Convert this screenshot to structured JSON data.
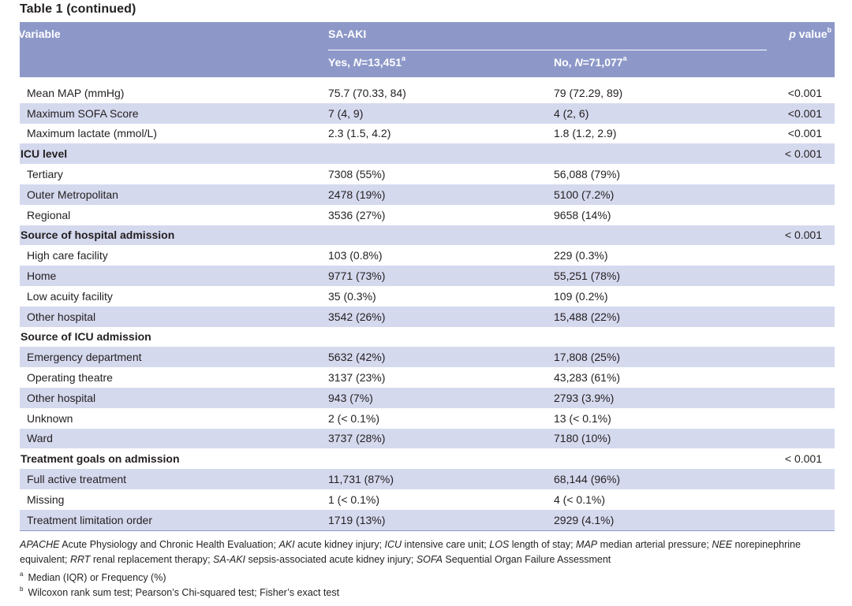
{
  "title": "Table 1 (continued)",
  "header": {
    "variable": "Variable",
    "group": "SA-AKI",
    "yes_prefix": "Yes, ",
    "yes_n_label": "N",
    "yes_n_value": "=13,451",
    "yes_sup": "a",
    "no_prefix": "No, ",
    "no_n_label": "N",
    "no_n_value": "=71,077",
    "no_sup": "a",
    "pvalue_italic": "p",
    "pvalue_rest": " value",
    "pvalue_sup": "b"
  },
  "rows": [
    {
      "variable": "Mean MAP (mmHg)",
      "yes": "75.7 (70.33, 84)",
      "no": "79 (72.29, 89)",
      "p": "<0.001",
      "section": false
    },
    {
      "variable": "Maximum SOFA Score",
      "yes": "7 (4, 9)",
      "no": "4 (2, 6)",
      "p": "<0.001",
      "section": false
    },
    {
      "variable": "Maximum lactate (mmol/L)",
      "yes": "2.3 (1.5, 4.2)",
      "no": "1.8 (1.2, 2.9)",
      "p": "<0.001",
      "section": false
    },
    {
      "variable": "ICU level",
      "yes": "",
      "no": "",
      "p": "< 0.001",
      "section": true
    },
    {
      "variable": "Tertiary",
      "yes": "7308 (55%)",
      "no": "56,088 (79%)",
      "p": "",
      "section": false
    },
    {
      "variable": "Outer Metropolitan",
      "yes": "2478 (19%)",
      "no": "5100 (7.2%)",
      "p": "",
      "section": false
    },
    {
      "variable": "Regional",
      "yes": "3536 (27%)",
      "no": "9658 (14%)",
      "p": "",
      "section": false
    },
    {
      "variable": "Source of hospital admission",
      "yes": "",
      "no": "",
      "p": "< 0.001",
      "section": true
    },
    {
      "variable": "High care facility",
      "yes": "103 (0.8%)",
      "no": "229 (0.3%)",
      "p": "",
      "section": false
    },
    {
      "variable": "Home",
      "yes": "9771 (73%)",
      "no": "55,251 (78%)",
      "p": "",
      "section": false
    },
    {
      "variable": "Low acuity facility",
      "yes": "35 (0.3%)",
      "no": "109 (0.2%)",
      "p": "",
      "section": false
    },
    {
      "variable": "Other hospital",
      "yes": "3542 (26%)",
      "no": "15,488 (22%)",
      "p": "",
      "section": false
    },
    {
      "variable": "Source of ICU admission",
      "yes": "",
      "no": "",
      "p": "",
      "section": true
    },
    {
      "variable": "Emergency department",
      "yes": "5632 (42%)",
      "no": "17,808 (25%)",
      "p": "",
      "section": false
    },
    {
      "variable": "Operating theatre",
      "yes": "3137 (23%)",
      "no": "43,283 (61%)",
      "p": "",
      "section": false
    },
    {
      "variable": "Other hospital",
      "yes": "943 (7%)",
      "no": "2793 (3.9%)",
      "p": "",
      "section": false
    },
    {
      "variable": "Unknown",
      "yes": "2 (< 0.1%)",
      "no": "13 (< 0.1%)",
      "p": "",
      "section": false
    },
    {
      "variable": "Ward",
      "yes": "3737 (28%)",
      "no": "7180 (10%)",
      "p": "",
      "section": false
    },
    {
      "variable": "Treatment goals on admission",
      "yes": "",
      "no": "",
      "p": "< 0.001",
      "section": true
    },
    {
      "variable": "Full active treatment",
      "yes": "11,731 (87%)",
      "no": "68,144 (96%)",
      "p": "",
      "section": false
    },
    {
      "variable": "Missing",
      "yes": "1 (< 0.1%)",
      "no": "4 (< 0.1%)",
      "p": "",
      "section": false
    },
    {
      "variable": "Treatment limitation order",
      "yes": "1719 (13%)",
      "no": "2929 (4.1%)",
      "p": "",
      "section": false
    }
  ],
  "abbreviations": [
    {
      "term": "APACHE",
      "def": " Acute Physiology and Chronic Health Evaluation; "
    },
    {
      "term": "AKI",
      "def": " acute kidney injury; "
    },
    {
      "term": "ICU",
      "def": " intensive care unit; "
    },
    {
      "term": "LOS",
      "def": " length of stay; "
    },
    {
      "term": "MAP",
      "def": " median arterial pressure; "
    },
    {
      "term": "NEE",
      "def": " norepinephrine equivalent; "
    },
    {
      "term": "RRT",
      "def": " renal replacement therapy; "
    },
    {
      "term": "SA-AKI",
      "def": " sepsis-associated acute kidney injury; "
    },
    {
      "term": "SOFA",
      "def": " Sequential Organ Failure Assessment"
    }
  ],
  "footnotes": [
    {
      "mark": "a",
      "text": "Median (IQR) or Frequency (%)"
    },
    {
      "mark": "b",
      "text": "Wilcoxon rank sum test; Pearson’s Chi-squared test; Fisher’s exact test"
    }
  ]
}
